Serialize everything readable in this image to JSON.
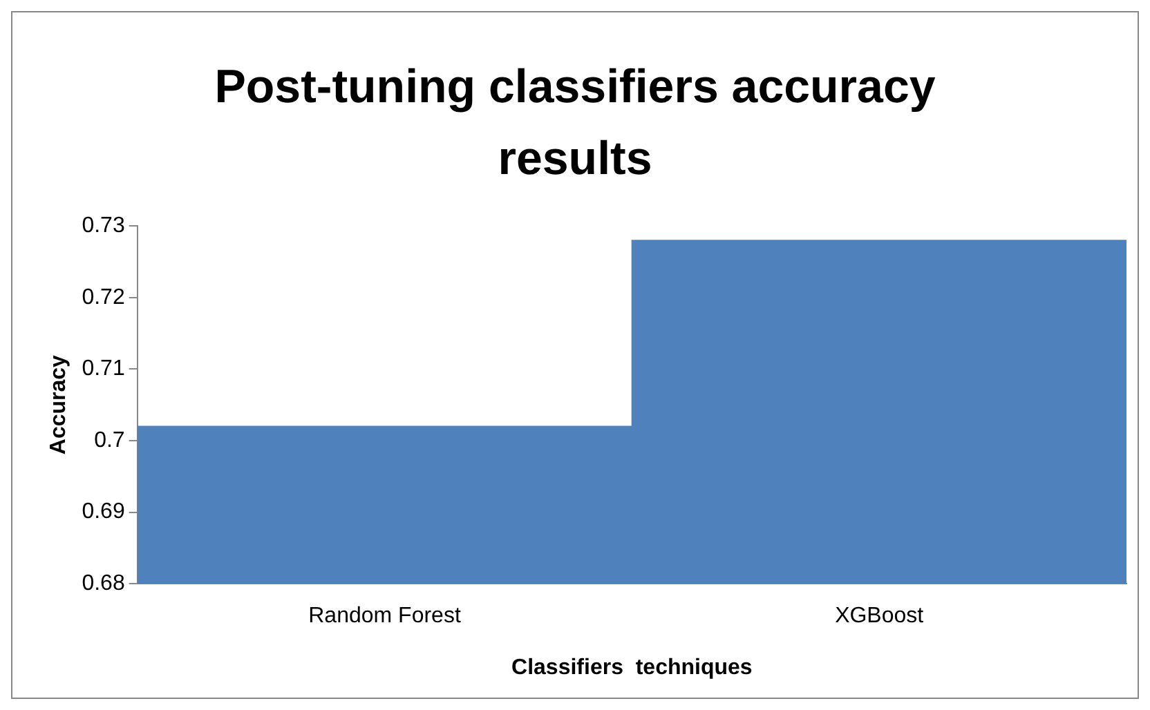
{
  "chart_data": {
    "type": "bar",
    "title": "Post-tuning classifiers accuracy results",
    "xlabel": "Classifiers  techniques",
    "ylabel": "Accuracy",
    "categories": [
      "Random Forest",
      "XGBoost"
    ],
    "values": [
      0.702,
      0.728
    ],
    "color": "#4f81bd",
    "ylim": [
      0.68,
      0.73
    ],
    "yticks": [
      {
        "value": 0.68,
        "label": "0.68"
      },
      {
        "value": 0.69,
        "label": "0.69"
      },
      {
        "value": 0.7,
        "label": "0.7"
      },
      {
        "value": 0.71,
        "label": "0.71"
      },
      {
        "value": 0.72,
        "label": "0.72"
      },
      {
        "value": 0.73,
        "label": "0.73"
      }
    ],
    "grid": false,
    "legend": false
  }
}
